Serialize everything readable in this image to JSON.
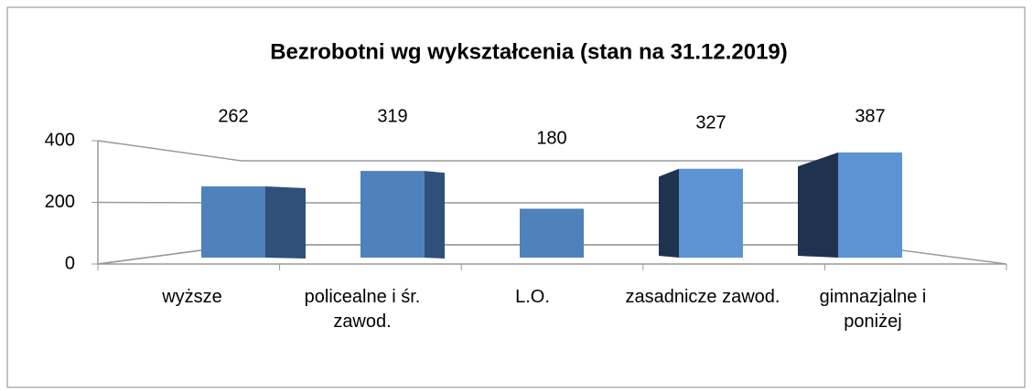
{
  "chart_data": {
    "type": "bar3d",
    "title": "Bezrobotni wg wykształcenia (stan na 31.12.2019)",
    "categories": [
      "wyższe",
      "policealne i śr. zawod.",
      "L.O.",
      "zasadnicze zawod.",
      "gimnazjalne i poniżej"
    ],
    "values": [
      262,
      319,
      180,
      327,
      387
    ],
    "color": "#4f81bd",
    "ylim": [
      0,
      400
    ],
    "yticks": [
      0,
      200,
      400
    ],
    "grid": true
  }
}
